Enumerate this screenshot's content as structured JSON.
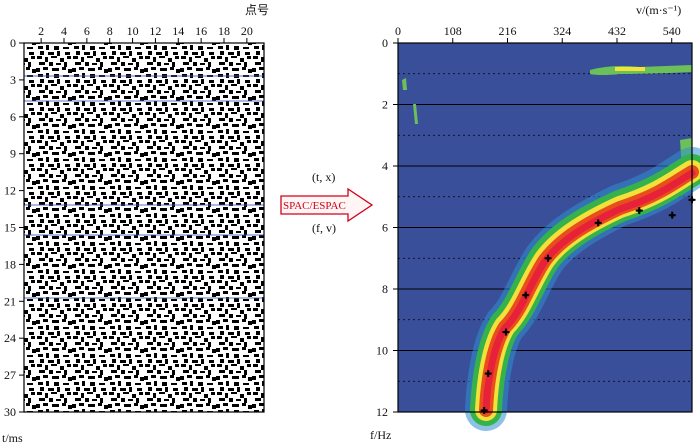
{
  "left_panel": {
    "x_axis_title": "点号",
    "x_ticks": [
      "2",
      "4",
      "6",
      "8",
      "10",
      "12",
      "14",
      "16",
      "18",
      "20"
    ],
    "y_axis_title": "t/ms",
    "y_ticks": [
      "0",
      "3",
      "6",
      "9",
      "12",
      "15",
      "18",
      "21",
      "24",
      "27",
      "30"
    ]
  },
  "transform": {
    "domain_from": "(t, x)",
    "method": "SPAC/ESPAC",
    "domain_to": "(f, v)",
    "arrow_color": "#d0021b"
  },
  "right_panel": {
    "x_axis_title": "v/(m·s⁻¹)",
    "x_ticks": [
      "0",
      "108",
      "216",
      "324",
      "432",
      "540"
    ],
    "y_axis_title": "f/Hz",
    "y_ticks": [
      "0",
      "2",
      "4",
      "6",
      "8",
      "10",
      "12"
    ],
    "background_color": "#3a4f9a"
  },
  "chart_data": {
    "type": "scatter",
    "title": "",
    "xlabel": "v/(m·s⁻¹)",
    "ylabel": "f/Hz",
    "xlim": [
      0,
      580
    ],
    "ylim": [
      12,
      0
    ],
    "series": [
      {
        "x": [
          541,
          580,
          476,
          395,
          296,
          252,
          213,
          178,
          170
        ],
        "y": [
          5.6,
          5.1,
          5.45,
          5.85,
          7.0,
          8.2,
          9.4,
          10.75,
          11.95
        ]
      }
    ]
  }
}
